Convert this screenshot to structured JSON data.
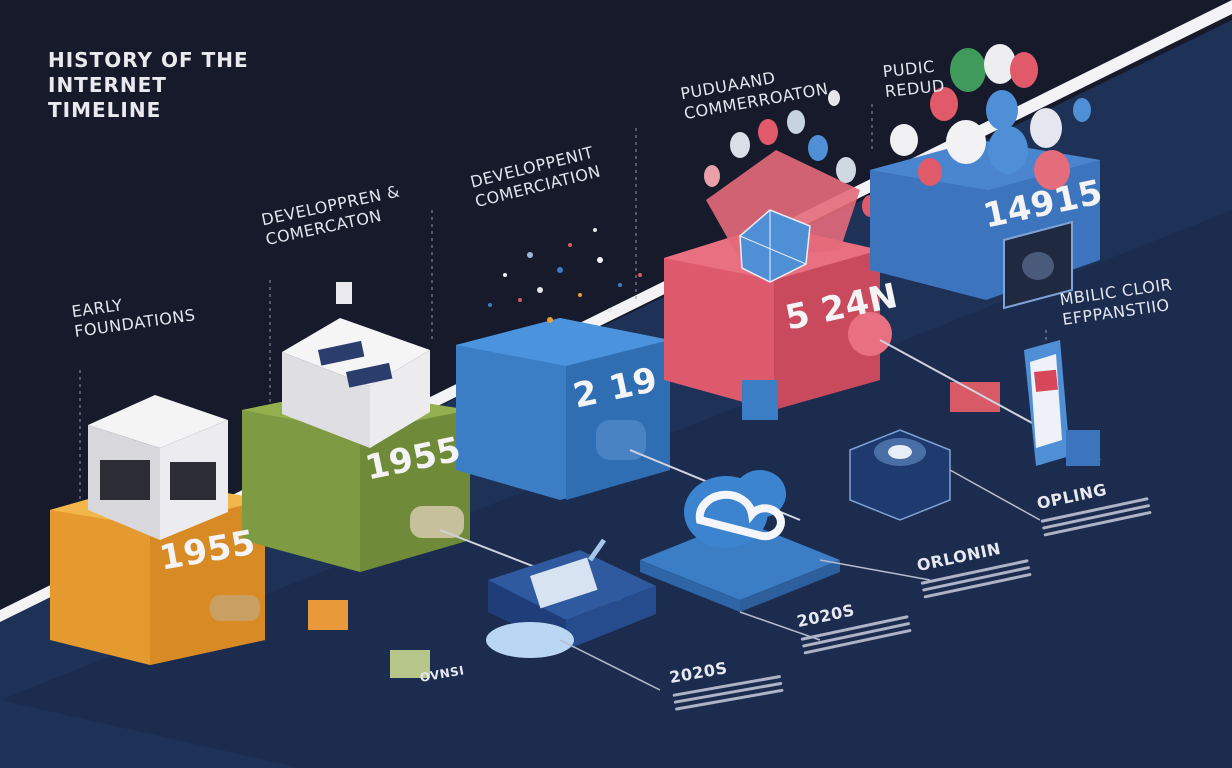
{
  "title": "HISTORY OF THE INTERNET TIMELINE",
  "stages": [
    {
      "label_lines": [
        "EARLY",
        "FOUNDATIONS"
      ],
      "year": "1955",
      "color": "#e8a034"
    },
    {
      "label_lines": [
        "DEVELOPPREN &",
        "COMERCATON"
      ],
      "year": "1955",
      "color": "#7f9a44"
    },
    {
      "label_lines": [
        "DEVELOPPENIT",
        "COMERCIATION"
      ],
      "year": "2 19",
      "color": "#3d7fc4"
    },
    {
      "label_lines": [
        "PUDUAAND",
        "COMMERROATON"
      ],
      "year": "5 24n",
      "color": "#de5a6c"
    },
    {
      "label_lines": [
        "PUDIC",
        "REDUD"
      ],
      "year": "14915",
      "color": "#3c74bd"
    },
    {
      "label_lines": [
        "MBILIC CLOIR",
        "EFPPANSTIIO"
      ],
      "year": "",
      "color": "#3c74bd"
    }
  ],
  "lower_labels": [
    "2020S",
    "2020S",
    "ORLONIN",
    "OPLING",
    "OVNSI"
  ],
  "colors": {
    "background": "#161a2b",
    "band": "#1f3660",
    "stripe": "#f3f3f6",
    "accent_blue": "#3c74bd"
  }
}
